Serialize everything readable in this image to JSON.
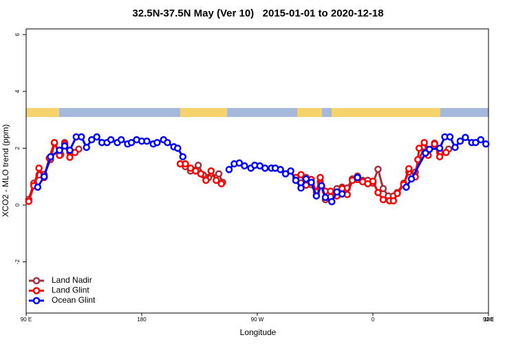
{
  "chart_data": {
    "type": "line",
    "title": "32.5N-37.5N May (Ver 10)   2015-01-01 to 2020-12-18",
    "x_label": "Longitude",
    "y_label": "XCO2 - MLO trend (ppm)",
    "xlim": [
      90,
      450
    ],
    "ylim": [
      -3.8,
      6.2
    ],
    "xticks": [
      {
        "value": 90,
        "label": "90 E"
      },
      180,
      {
        "value": 270,
        "label": "90 W"
      },
      {
        "value": 360,
        "label": "0"
      },
      {
        "value": 450,
        "label": "90 E"
      },
      {
        "value": 540,
        "label": "180"
      }
    ],
    "yticks": [
      -2,
      0,
      2,
      4,
      6
    ],
    "legend": "bottom-left",
    "series": [
      {
        "name": "Land Nadir",
        "color": "#a3303c",
        "x": [
          92,
          96,
          100,
          104,
          109,
          112,
          117,
          120,
          124,
          131,
          null,
          210,
          214,
          218,
          224,
          228,
          232,
          240,
          243,
          null,
          300,
          304,
          308,
          312,
          316,
          319,
          323,
          327,
          332,
          336,
          340,
          344,
          348,
          352,
          356,
          360,
          364,
          368,
          372,
          376,
          379,
          384,
          388,
          393,
          396,
          400,
          403,
          408,
          412,
          419
        ],
        "values": [
          0.2,
          0.77,
          1.06,
          1.08,
          1.6,
          2.18,
          1.78,
          2.2,
          1.85,
          1.97,
          null,
          1.45,
          1.35,
          1.2,
          1.4,
          1.06,
          0.97,
          1.1,
          0.8,
          null,
          0.87,
          0.78,
          0.97,
          0.72,
          0.34,
          0.82,
          0.19,
          0.29,
          0.58,
          0.63,
          0.6,
          0.92,
          1.02,
          0.87,
          0.87,
          0.77,
          1.26,
          0.58,
          0.32,
          0.32,
          0.44,
          0.77,
          1.16,
          1.16,
          1.6,
          2.05,
          1.95,
          2.18,
          1.85,
          1.97
        ]
      },
      {
        "name": "Land Glint",
        "color": "#ff0000",
        "x": [
          92,
          96,
          100,
          104,
          108,
          112,
          116,
          120,
          124,
          128,
          null,
          210,
          214,
          218,
          222,
          226,
          230,
          234,
          238,
          242,
          null,
          300,
          304,
          308,
          312,
          316,
          319,
          323,
          327,
          332,
          336,
          340,
          344,
          348,
          352,
          356,
          360,
          364,
          368,
          373,
          376,
          379,
          384,
          388,
          393,
          395,
          396,
          400,
          403,
          408,
          412,
          417
        ],
        "values": [
          0.13,
          0.68,
          1.3,
          0.97,
          1.65,
          2.2,
          1.75,
          2.15,
          1.68,
          1.85,
          null,
          1.45,
          1.45,
          1.3,
          1.2,
          1.1,
          0.87,
          1.2,
          0.87,
          0.75,
          null,
          0.97,
          1.07,
          0.7,
          0.9,
          0.46,
          0.97,
          0.49,
          0.49,
          0.32,
          0.58,
          0.37,
          0.87,
          0.9,
          0.82,
          0.75,
          0.84,
          0.44,
          0.19,
          0.15,
          0.15,
          0.41,
          0.72,
          1.28,
          0.99,
          1.6,
          2.0,
          2.2,
          1.75,
          2.15,
          1.7,
          1.85
        ]
      },
      {
        "name": "Ocean Glint",
        "color": "#0000ff",
        "x": [
          99,
          104,
          109,
          116,
          120,
          124,
          129,
          133,
          137,
          141,
          145,
          149,
          153,
          156,
          161,
          164,
          169,
          172,
          176,
          180,
          184,
          189,
          192,
          197,
          200,
          205,
          208,
          212,
          null,
          248,
          252,
          256,
          260,
          265,
          268,
          272,
          276,
          281,
          284,
          288,
          292,
          296,
          300,
          304,
          308,
          312,
          316,
          320,
          323,
          328,
          332,
          336,
          null,
          348,
          null,
          386,
          390,
          401,
          404,
          412,
          416,
          420,
          424,
          428,
          432,
          437,
          440,
          444,
          448
        ],
        "values": [
          0.63,
          1.0,
          1.7,
          1.93,
          2.08,
          1.93,
          2.4,
          2.4,
          2.03,
          2.3,
          2.4,
          2.2,
          2.2,
          2.3,
          2.2,
          2.3,
          2.15,
          2.2,
          2.3,
          2.25,
          2.25,
          2.15,
          2.2,
          2.3,
          2.2,
          2.05,
          2.0,
          1.7,
          null,
          1.25,
          1.45,
          1.48,
          1.38,
          1.3,
          1.4,
          1.38,
          1.3,
          1.3,
          1.3,
          1.25,
          1.1,
          1.2,
          0.87,
          0.6,
          0.92,
          0.8,
          0.32,
          0.68,
          0.27,
          0.12,
          0.46,
          0.39,
          null,
          0.97,
          null,
          0.63,
          0.92,
          1.83,
          1.96,
          2.0,
          2.4,
          2.4,
          2.03,
          2.25,
          2.38,
          2.2,
          2.2,
          2.3,
          2.15
        ]
      }
    ]
  }
}
